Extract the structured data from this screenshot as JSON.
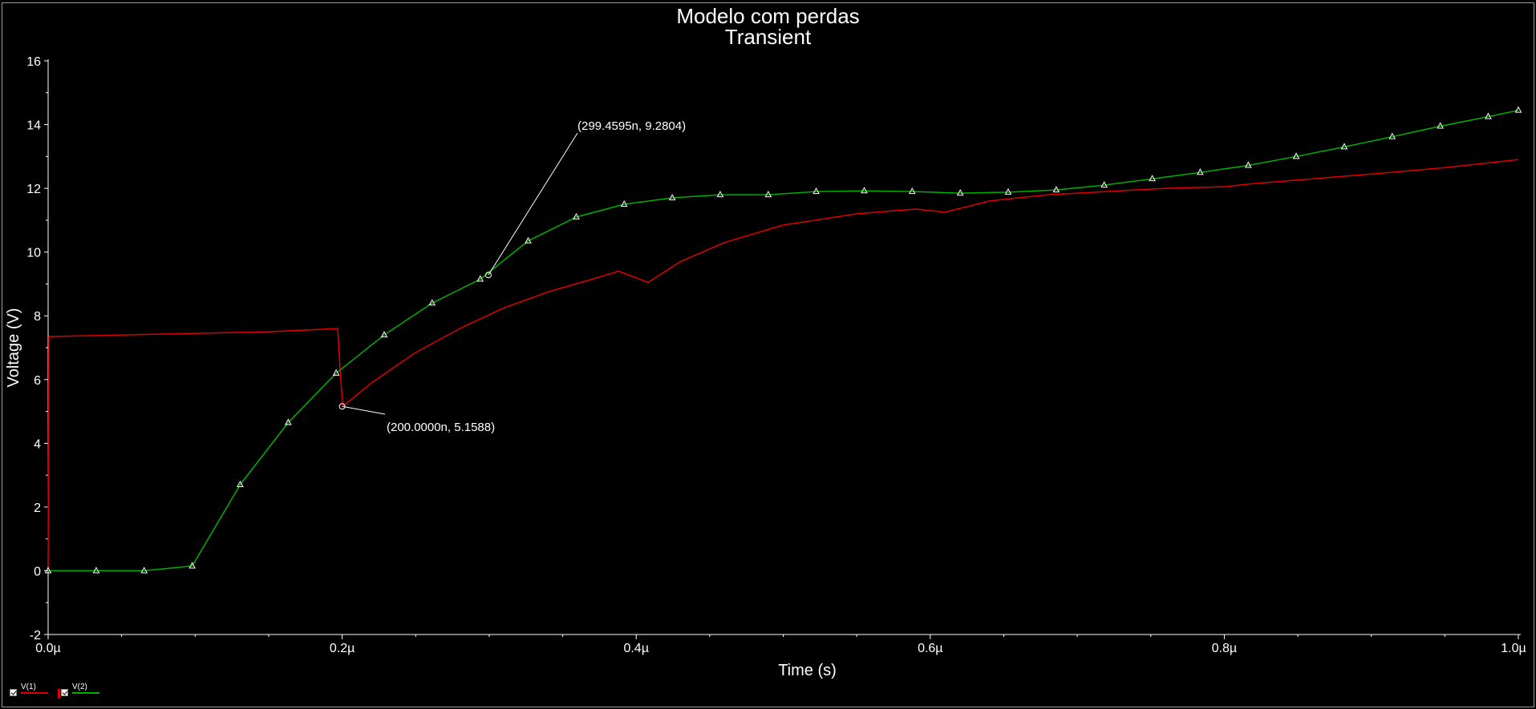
{
  "window": {
    "title_line1": "Modelo com perdas",
    "title_line2": "Transient"
  },
  "chart_data": {
    "type": "line",
    "title": "Modelo com perdas",
    "subtitle": "Transient",
    "xlabel": "Time (s)",
    "ylabel": "Voltage (V)",
    "xlim": [
      0,
      1.0
    ],
    "ylim": [
      -2,
      16
    ],
    "x_unit": "µs",
    "x_ticks": [
      0.0,
      0.2,
      0.4,
      0.6,
      0.8,
      1.0
    ],
    "x_tick_labels": [
      "0.0µ",
      "0.2µ",
      "0.4µ",
      "0.6µ",
      "0.8µ",
      "1.0µ"
    ],
    "y_ticks": [
      -2,
      0,
      2,
      4,
      6,
      8,
      10,
      12,
      14,
      16
    ],
    "y_tick_labels": [
      "-2",
      "0",
      "2",
      "4",
      "6",
      "8",
      "10",
      "12",
      "14",
      "16"
    ],
    "grid": false,
    "background": "#000000",
    "axis_color": "#ffffff",
    "legend_position": "bottom-left",
    "series": [
      {
        "name": "V(1)",
        "color": "#dd0000",
        "marker": "none",
        "x": [
          0.0,
          0.0005,
          0.05,
          0.1,
          0.15,
          0.197,
          0.199,
          0.2005,
          0.22,
          0.25,
          0.28,
          0.31,
          0.34,
          0.37,
          0.388,
          0.408,
          0.43,
          0.46,
          0.5,
          0.55,
          0.59,
          0.61,
          0.64,
          0.68,
          0.72,
          0.76,
          0.8,
          0.82,
          0.86,
          0.9,
          0.95,
          1.0
        ],
        "y": [
          0.0,
          7.35,
          7.4,
          7.45,
          7.5,
          7.6,
          6.0,
          5.16,
          5.9,
          6.85,
          7.6,
          8.25,
          8.75,
          9.15,
          9.4,
          9.05,
          9.7,
          10.3,
          10.85,
          11.2,
          11.35,
          11.25,
          11.6,
          11.8,
          11.9,
          12.0,
          12.05,
          12.15,
          12.3,
          12.45,
          12.65,
          12.9
        ]
      },
      {
        "name": "V(2)",
        "color": "#00b000",
        "marker": "triangle",
        "x": [
          0.0,
          0.0327,
          0.0653,
          0.098,
          0.1306,
          0.1633,
          0.1959,
          0.2286,
          0.2612,
          0.2939,
          0.3265,
          0.3592,
          0.3918,
          0.4245,
          0.4571,
          0.4898,
          0.5224,
          0.5551,
          0.5877,
          0.6204,
          0.653,
          0.6857,
          0.7183,
          0.751,
          0.7836,
          0.8163,
          0.8489,
          0.8816,
          0.9142,
          0.9469,
          0.9795,
          1.0
        ],
        "y": [
          0.0,
          0.0,
          0.0,
          0.15,
          2.7,
          4.65,
          6.2,
          7.4,
          8.4,
          9.15,
          10.35,
          11.1,
          11.5,
          11.7,
          11.8,
          11.8,
          11.9,
          11.92,
          11.9,
          11.85,
          11.88,
          11.95,
          12.1,
          12.3,
          12.5,
          12.72,
          13.0,
          13.3,
          13.62,
          13.95,
          14.25,
          14.45
        ]
      }
    ],
    "annotations": [
      {
        "label": "(299.4595n, 9.2804)",
        "x": 0.2994595,
        "y": 9.2804,
        "series": "V(2)"
      },
      {
        "label": "(200.0000n, 5.1588)",
        "x": 0.2,
        "y": 5.1588,
        "series": "V(1)"
      }
    ]
  }
}
